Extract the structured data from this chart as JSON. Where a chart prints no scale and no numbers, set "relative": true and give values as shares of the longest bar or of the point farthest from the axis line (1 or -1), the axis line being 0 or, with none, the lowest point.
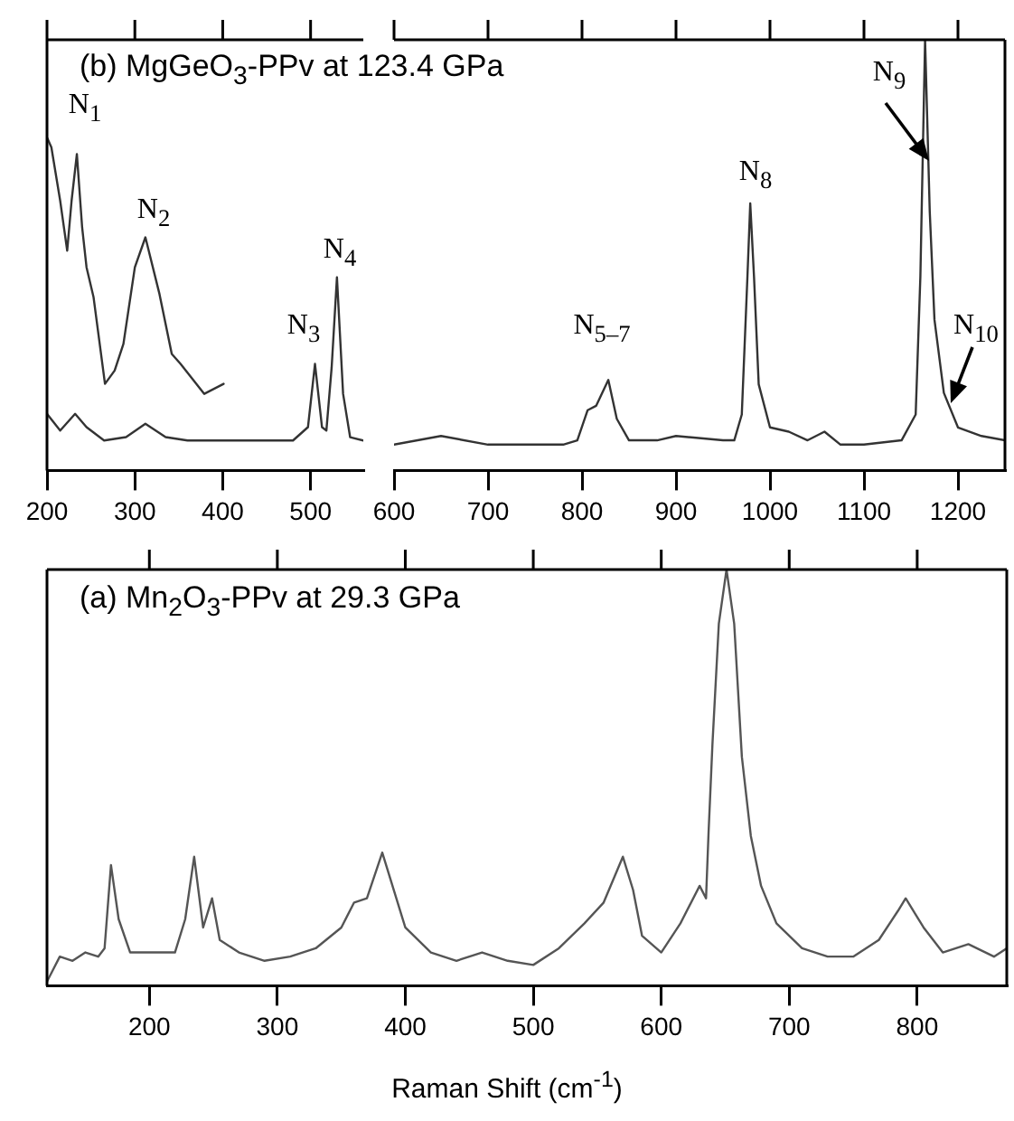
{
  "chart_data": [
    {
      "type": "line",
      "title": "(b) MgGeO$_{3}$-PPv at 123.4 GPa",
      "relative": true,
      "xlim": [
        200,
        560
      ],
      "xticks": [
        200,
        300,
        400,
        500
      ],
      "series": [
        {
          "color": "#333333",
          "x": [
            200,
            215,
            232,
            245,
            265,
            290,
            312,
            335,
            360,
            420,
            480,
            497,
            505,
            513,
            518,
            524,
            530,
            537,
            545,
            560
          ],
          "values": [
            0.17,
            0.12,
            0.17,
            0.13,
            0.09,
            0.1,
            0.14,
            0.1,
            0.09,
            0.09,
            0.09,
            0.13,
            0.32,
            0.13,
            0.12,
            0.31,
            0.58,
            0.23,
            0.1,
            0.09
          ]
        },
        {
          "color": "#333333",
          "x": [
            200,
            205,
            215,
            223,
            228,
            234,
            240,
            245,
            253,
            266,
            277,
            287,
            300,
            312,
            328,
            342,
            352,
            379,
            401
          ],
          "values": [
            1,
            0.97,
            0.81,
            0.66,
            0.81,
            0.95,
            0.73,
            0.61,
            0.52,
            0.26,
            0.3,
            0.38,
            0.61,
            0.7,
            0.53,
            0.35,
            0.32,
            0.23,
            0.26
          ]
        }
      ],
      "annotations": [
        "N$_{1}$",
        "N$_{2}$",
        "N$_{3}$",
        "N$_{4}$"
      ]
    },
    {
      "type": "line",
      "relative": true,
      "xlim": [
        600,
        1250
      ],
      "xticks": [
        600,
        700,
        800,
        900,
        1000,
        1100,
        1200
      ],
      "series": [
        {
          "color": "#333333",
          "x": [
            600,
            650,
            700,
            780,
            795,
            806,
            815,
            828,
            837,
            850,
            880,
            900,
            950,
            962,
            970,
            976,
            979,
            983,
            988,
            1000,
            1020,
            1040,
            1058,
            1075,
            1100,
            1140,
            1155,
            1160,
            1165,
            1170,
            1175,
            1185,
            1200,
            1225,
            1250
          ],
          "values": [
            0.06,
            0.08,
            0.06,
            0.06,
            0.07,
            0.14,
            0.15,
            0.21,
            0.12,
            0.07,
            0.07,
            0.08,
            0.07,
            0.07,
            0.13,
            0.45,
            0.62,
            0.45,
            0.2,
            0.1,
            0.09,
            0.07,
            0.09,
            0.06,
            0.06,
            0.07,
            0.13,
            0.45,
            1,
            0.6,
            0.35,
            0.18,
            0.1,
            0.08,
            0.07
          ]
        }
      ],
      "annotations": [
        "N$_{5–7}$",
        "N$_{8}$",
        "N$_{9}$",
        "N$_{10}$"
      ]
    },
    {
      "type": "line",
      "title": "(a) Mn$_{2}$O$_{3}$-PPv at 29.3 GPa",
      "xlabel": "Raman Shift (cm$^{-1}$)",
      "relative": true,
      "xlim": [
        120,
        870
      ],
      "xticks": [
        200,
        300,
        400,
        500,
        600,
        700,
        800
      ],
      "series": [
        {
          "color": "#555555",
          "x": [
            120,
            130,
            140,
            150,
            160,
            165,
            170,
            176,
            185,
            200,
            220,
            228,
            235,
            242,
            249,
            255,
            270,
            290,
            310,
            330,
            350,
            360,
            370,
            382,
            392,
            400,
            420,
            440,
            460,
            480,
            500,
            520,
            540,
            555,
            570,
            578,
            585,
            600,
            615,
            630,
            635,
            637,
            640,
            645,
            651,
            657,
            663,
            670,
            678,
            690,
            710,
            730,
            750,
            770,
            785,
            791,
            805,
            820,
            840,
            860,
            870
          ],
          "values": [
            0.01,
            0.07,
            0.06,
            0.08,
            0.07,
            0.09,
            0.29,
            0.16,
            0.08,
            0.08,
            0.08,
            0.16,
            0.31,
            0.14,
            0.21,
            0.11,
            0.08,
            0.06,
            0.07,
            0.09,
            0.14,
            0.2,
            0.21,
            0.32,
            0.22,
            0.14,
            0.08,
            0.06,
            0.08,
            0.06,
            0.05,
            0.09,
            0.15,
            0.2,
            0.31,
            0.23,
            0.12,
            0.08,
            0.15,
            0.24,
            0.21,
            0.37,
            0.58,
            0.87,
            1,
            0.87,
            0.55,
            0.36,
            0.24,
            0.15,
            0.09,
            0.07,
            0.07,
            0.11,
            0.18,
            0.21,
            0.14,
            0.08,
            0.1,
            0.07,
            0.09
          ]
        }
      ]
    }
  ]
}
